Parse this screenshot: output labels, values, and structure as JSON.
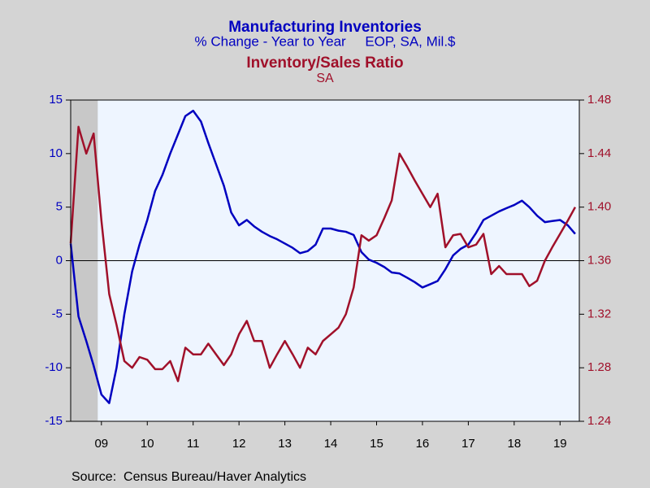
{
  "chart_data": {
    "type": "line",
    "title": "Manufacturing Inventories",
    "subtitle": "% Change - Year to Year     EOP, SA, Mil.$",
    "title2": "Inventory/Sales Ratio",
    "subtitle2": "SA",
    "source": "Source:  Census Bureau/Haver Analytics",
    "x": [
      2008.83,
      2009.0,
      2009.17,
      2009.33,
      2009.5,
      2009.67,
      2009.83,
      2010.0,
      2010.17,
      2010.33,
      2010.5,
      2010.67,
      2010.83,
      2011.0,
      2011.17,
      2011.33,
      2011.5,
      2011.67,
      2011.83,
      2012.0,
      2012.17,
      2012.33,
      2012.5,
      2012.67,
      2012.83,
      2013.0,
      2013.17,
      2013.33,
      2013.5,
      2013.67,
      2013.83,
      2014.0,
      2014.17,
      2014.33,
      2014.5,
      2014.67,
      2014.83,
      2015.0,
      2015.17,
      2015.33,
      2015.5,
      2015.67,
      2015.83,
      2016.0,
      2016.17,
      2016.33,
      2016.5,
      2016.67,
      2016.83,
      2017.0,
      2017.17,
      2017.33,
      2017.5,
      2017.67,
      2017.83,
      2018.0,
      2018.17,
      2018.33,
      2018.5,
      2018.67,
      2018.83,
      2019.0,
      2019.17,
      2019.33,
      2019.5,
      2019.67,
      2019.83
    ],
    "series": [
      {
        "name": "Manufacturing Inventories",
        "color": "#0000c0",
        "axis": "y",
        "values": [
          1.6,
          -5.2,
          -7.5,
          -9.8,
          -12.5,
          -13.3,
          -10,
          -5,
          -1,
          1.5,
          3.8,
          6.5,
          8,
          10,
          11.8,
          13.5,
          14,
          13,
          11,
          9,
          7,
          4.5,
          3.3,
          3.8,
          3.2,
          2.7,
          2.3,
          2,
          1.6,
          1.2,
          0.7,
          0.9,
          1.5,
          3,
          3,
          2.8,
          2.7,
          2.4,
          0.8,
          0.1,
          -0.2,
          -0.6,
          -1.1,
          -1.2,
          -1.6,
          -2,
          -2.5,
          -2.2,
          -1.9,
          -0.8,
          0.5,
          1.1,
          1.5,
          2.6,
          3.8,
          4.2,
          4.6,
          4.9,
          5.2,
          5.6,
          5,
          4.2,
          3.6,
          3.7,
          3.8,
          3.3,
          2.5
        ]
      },
      {
        "name": "Inventory/Sales Ratio",
        "color": "#a0102a",
        "axis": "y2",
        "values": [
          1.373,
          1.46,
          1.44,
          1.455,
          1.39,
          1.335,
          1.312,
          1.285,
          1.28,
          1.288,
          1.286,
          1.279,
          1.279,
          1.285,
          1.27,
          1.295,
          1.29,
          1.29,
          1.298,
          1.29,
          1.282,
          1.29,
          1.305,
          1.315,
          1.3,
          1.3,
          1.28,
          1.29,
          1.3,
          1.29,
          1.28,
          1.295,
          1.29,
          1.3,
          1.305,
          1.31,
          1.32,
          1.34,
          1.379,
          1.375,
          1.379,
          1.392,
          1.405,
          1.44,
          1.43,
          1.42,
          1.41,
          1.4,
          1.41,
          1.37,
          1.379,
          1.38,
          1.37,
          1.372,
          1.38,
          1.35,
          1.356,
          1.35,
          1.35,
          1.35,
          1.341,
          1.345,
          1.36,
          1.37,
          1.38,
          1.39,
          1.4
        ]
      }
    ],
    "shaded_periods": [
      [
        2008.83,
        2009.42
      ]
    ],
    "reference_line": 0,
    "xlim": [
      2008.83,
      2019.92
    ],
    "xticks": [
      {
        "value": 2009.5,
        "label": "09"
      },
      {
        "value": 2010.5,
        "label": "10"
      },
      {
        "value": 2011.5,
        "label": "11"
      },
      {
        "value": 2012.5,
        "label": "12"
      },
      {
        "value": 2013.5,
        "label": "13"
      },
      {
        "value": 2014.5,
        "label": "14"
      },
      {
        "value": 2015.5,
        "label": "15"
      },
      {
        "value": 2016.5,
        "label": "16"
      },
      {
        "value": 2017.5,
        "label": "17"
      },
      {
        "value": 2018.5,
        "label": "18"
      },
      {
        "value": 2019.5,
        "label": "19"
      }
    ],
    "ylim": [
      -15,
      15
    ],
    "yticks": [
      -15,
      -10,
      -5,
      0,
      5,
      10,
      15
    ],
    "y2lim": [
      1.24,
      1.48
    ],
    "y2ticks": [
      1.24,
      1.28,
      1.32,
      1.36,
      {
        "value": 1.4,
        "label": "1.40"
      },
      1.44,
      1.48
    ]
  }
}
